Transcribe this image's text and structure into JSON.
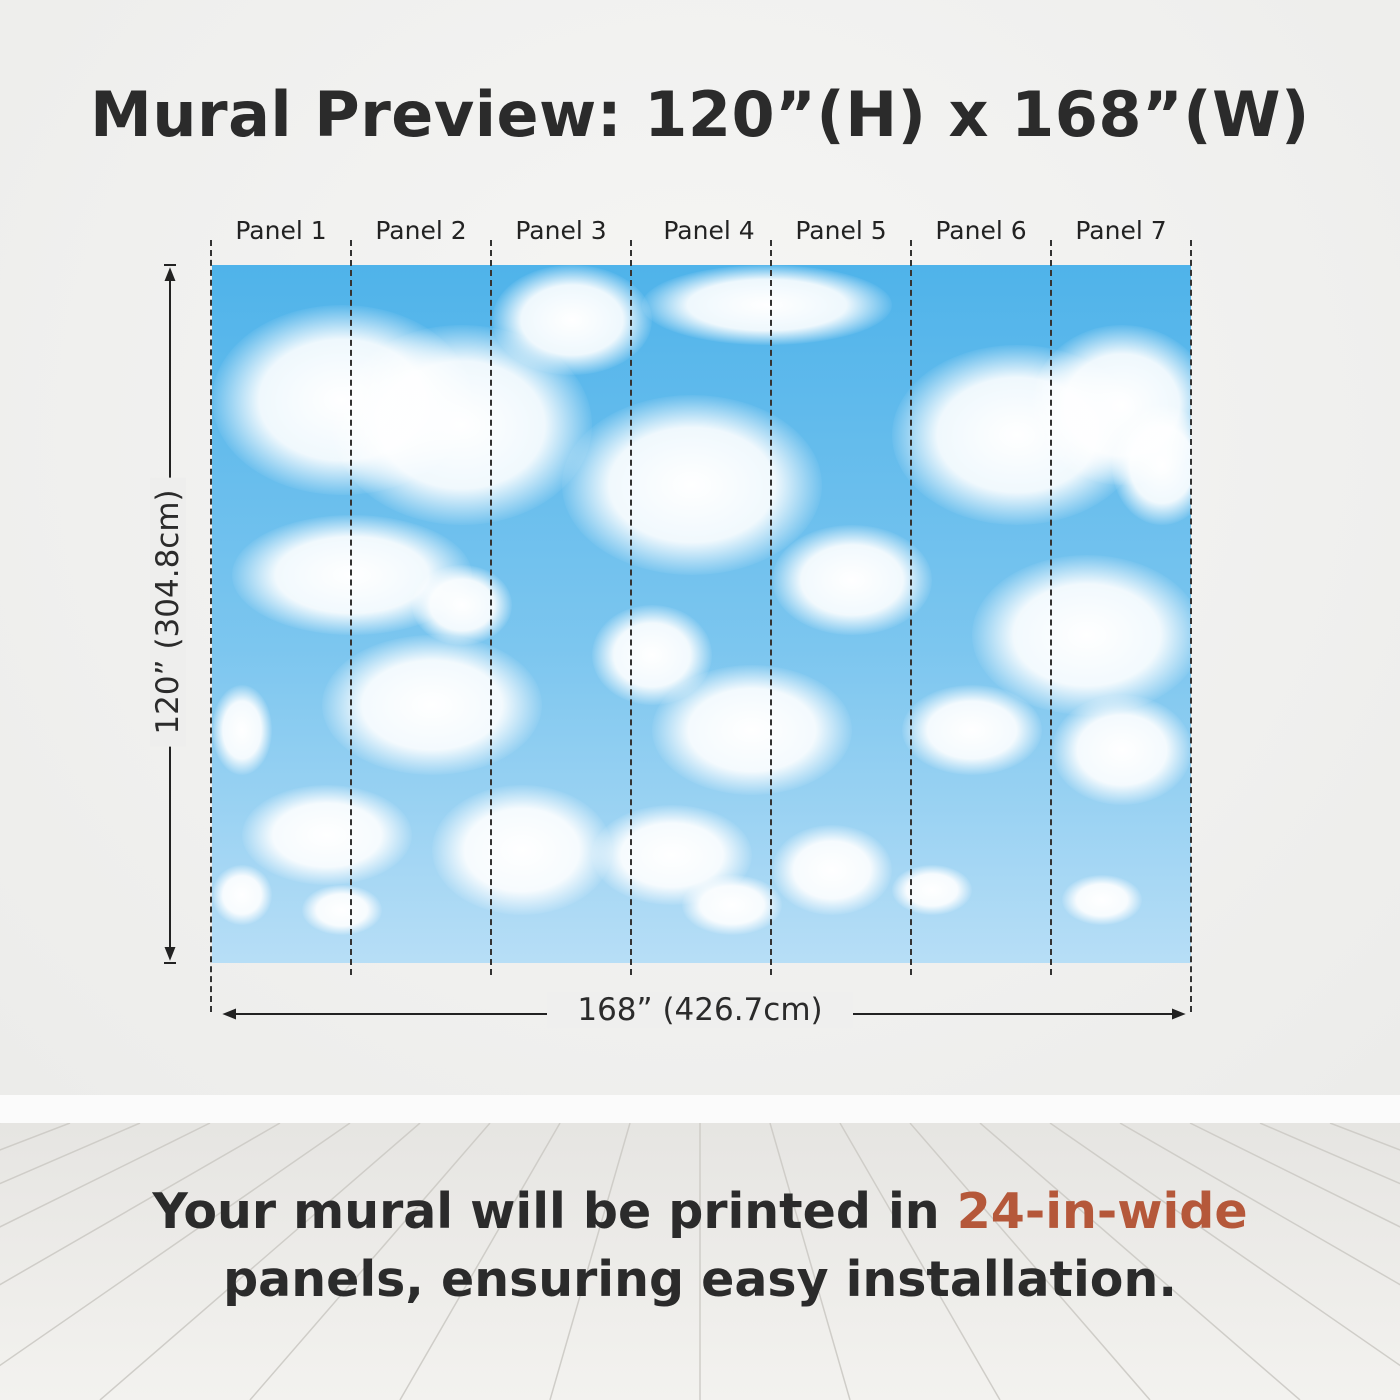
{
  "title": "Mural Preview: 120”(H) x 168”(W)",
  "panels": [
    "Panel 1",
    "Panel 2",
    "Panel 3",
    "Panel 4",
    "Panel 5",
    "Panel 6",
    "Panel 7"
  ],
  "height_label": "120” (304.8cm)",
  "width_label": "168” (426.7cm)",
  "caption": {
    "before": "Your mural will be printed in ",
    "highlight": "24-in-wide",
    "after": "panels, ensuring easy installation."
  },
  "colors": {
    "accent": "#b5583a",
    "sky": "#4fb3ea",
    "text": "#2b2b2b"
  }
}
